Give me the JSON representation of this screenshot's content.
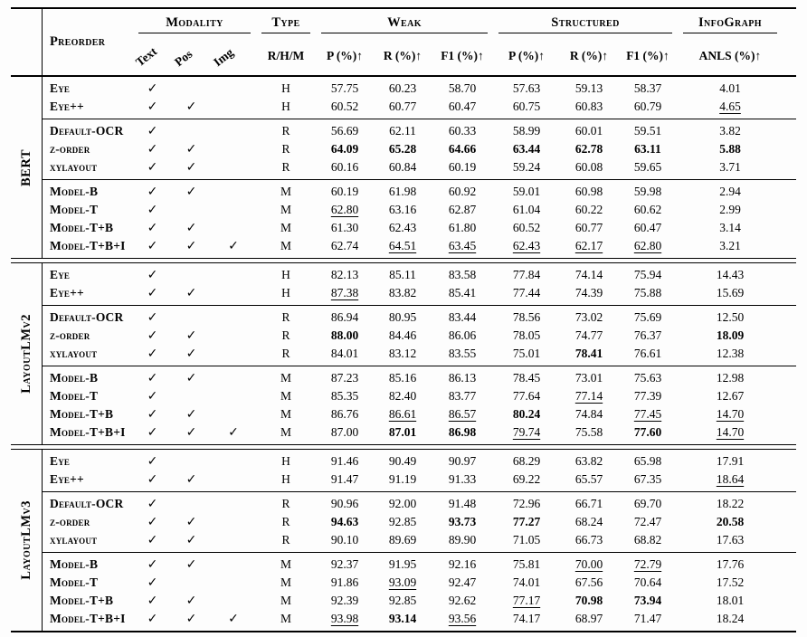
{
  "icons": {
    "check": "✓"
  },
  "colors": {
    "text": "#000000",
    "background": "#fdfdfd",
    "rule": "#000000"
  },
  "table": {
    "header": {
      "preorder": "Preorder",
      "modality": {
        "label": "Modality",
        "cols": [
          "Text",
          "Pos",
          "Img"
        ]
      },
      "type": {
        "label": "Type",
        "col": "R/H/M"
      },
      "weak": {
        "label": "Weak",
        "cols": [
          "P (%)↑",
          "R (%)↑",
          "F1 (%)↑"
        ]
      },
      "structured": {
        "label": "Structured",
        "cols": [
          "P (%)↑",
          "R (%)↑",
          "F1 (%)↑"
        ]
      },
      "infograph": {
        "label": "InfoGraph",
        "col": "ANLS (%)↑"
      }
    },
    "sections": [
      {
        "model": "BERT",
        "subsections": [
          {
            "rows": [
              {
                "label": "Eye",
                "checks": [
                  1,
                  0,
                  0
                ],
                "type": "H",
                "values": [
                  "57.75",
                  "60.23",
                  "58.70",
                  "57.63",
                  "59.13",
                  "58.37",
                  "4.01"
                ],
                "styles": [
                  "",
                  "",
                  "",
                  "",
                  "",
                  "",
                  ""
                ]
              },
              {
                "label": "Eye++",
                "checks": [
                  1,
                  1,
                  0
                ],
                "type": "H",
                "values": [
                  "60.52",
                  "60.77",
                  "60.47",
                  "60.75",
                  "60.83",
                  "60.79",
                  "4.65"
                ],
                "styles": [
                  "",
                  "",
                  "",
                  "",
                  "",
                  "",
                  "u"
                ]
              }
            ]
          },
          {
            "rows": [
              {
                "label": "Default-OCR",
                "checks": [
                  1,
                  0,
                  0
                ],
                "type": "R",
                "values": [
                  "56.69",
                  "62.11",
                  "60.33",
                  "58.99",
                  "60.01",
                  "59.51",
                  "3.82"
                ],
                "styles": [
                  "",
                  "",
                  "",
                  "",
                  "",
                  "",
                  ""
                ]
              },
              {
                "label": "z-order",
                "checks": [
                  1,
                  1,
                  0
                ],
                "type": "R",
                "values": [
                  "64.09",
                  "65.28",
                  "64.66",
                  "63.44",
                  "62.78",
                  "63.11",
                  "5.88"
                ],
                "styles": [
                  "b",
                  "b",
                  "b",
                  "b",
                  "b",
                  "b",
                  "b"
                ]
              },
              {
                "label": "xylayout",
                "checks": [
                  1,
                  1,
                  0
                ],
                "type": "R",
                "values": [
                  "60.16",
                  "60.84",
                  "60.19",
                  "59.24",
                  "60.08",
                  "59.65",
                  "3.71"
                ],
                "styles": [
                  "",
                  "",
                  "",
                  "",
                  "",
                  "",
                  ""
                ]
              }
            ]
          },
          {
            "rows": [
              {
                "label": "Model-B",
                "checks": [
                  1,
                  1,
                  0
                ],
                "type": "M",
                "values": [
                  "60.19",
                  "61.98",
                  "60.92",
                  "59.01",
                  "60.98",
                  "59.98",
                  "2.94"
                ],
                "styles": [
                  "",
                  "",
                  "",
                  "",
                  "",
                  "",
                  ""
                ]
              },
              {
                "label": "Model-T",
                "checks": [
                  1,
                  0,
                  0
                ],
                "type": "M",
                "values": [
                  "62.80",
                  "63.16",
                  "62.87",
                  "61.04",
                  "60.22",
                  "60.62",
                  "2.99"
                ],
                "styles": [
                  "u",
                  "",
                  "",
                  "",
                  "",
                  "",
                  ""
                ]
              },
              {
                "label": "Model-T+B",
                "checks": [
                  1,
                  1,
                  0
                ],
                "type": "M",
                "values": [
                  "61.30",
                  "62.43",
                  "61.80",
                  "60.52",
                  "60.77",
                  "60.47",
                  "3.14"
                ],
                "styles": [
                  "",
                  "",
                  "",
                  "",
                  "",
                  "",
                  ""
                ]
              },
              {
                "label": "Model-T+B+I",
                "checks": [
                  1,
                  1,
                  1
                ],
                "type": "M",
                "values": [
                  "62.74",
                  "64.51",
                  "63.45",
                  "62.43",
                  "62.17",
                  "62.80",
                  "3.21"
                ],
                "styles": [
                  "",
                  "u",
                  "u",
                  "u",
                  "u",
                  "u",
                  ""
                ]
              }
            ]
          }
        ]
      },
      {
        "model": "LayoutLMv2",
        "subsections": [
          {
            "rows": [
              {
                "label": "Eye",
                "checks": [
                  1,
                  0,
                  0
                ],
                "type": "H",
                "values": [
                  "82.13",
                  "85.11",
                  "83.58",
                  "77.84",
                  "74.14",
                  "75.94",
                  "14.43"
                ],
                "styles": [
                  "",
                  "",
                  "",
                  "",
                  "",
                  "",
                  ""
                ]
              },
              {
                "label": "Eye++",
                "checks": [
                  1,
                  1,
                  0
                ],
                "type": "H",
                "values": [
                  "87.38",
                  "83.82",
                  "85.41",
                  "77.44",
                  "74.39",
                  "75.88",
                  "15.69"
                ],
                "styles": [
                  "u",
                  "",
                  "",
                  "",
                  "",
                  "",
                  ""
                ]
              }
            ]
          },
          {
            "rows": [
              {
                "label": "Default-OCR",
                "checks": [
                  1,
                  0,
                  0
                ],
                "type": "R",
                "values": [
                  "86.94",
                  "80.95",
                  "83.44",
                  "78.56",
                  "73.02",
                  "75.69",
                  "12.50"
                ],
                "styles": [
                  "",
                  "",
                  "",
                  "",
                  "",
                  "",
                  ""
                ]
              },
              {
                "label": "z-order",
                "checks": [
                  1,
                  1,
                  0
                ],
                "type": "R",
                "values": [
                  "88.00",
                  "84.46",
                  "86.06",
                  "78.05",
                  "74.77",
                  "76.37",
                  "18.09"
                ],
                "styles": [
                  "b",
                  "",
                  "",
                  "",
                  "",
                  "",
                  "b"
                ]
              },
              {
                "label": "xylayout",
                "checks": [
                  1,
                  1,
                  0
                ],
                "type": "R",
                "values": [
                  "84.01",
                  "83.12",
                  "83.55",
                  "75.01",
                  "78.41",
                  "76.61",
                  "12.38"
                ],
                "styles": [
                  "",
                  "",
                  "",
                  "",
                  "b",
                  "",
                  ""
                ]
              }
            ]
          },
          {
            "rows": [
              {
                "label": "Model-B",
                "checks": [
                  1,
                  1,
                  0
                ],
                "type": "M",
                "values": [
                  "87.23",
                  "85.16",
                  "86.13",
                  "78.45",
                  "73.01",
                  "75.63",
                  "12.98"
                ],
                "styles": [
                  "",
                  "",
                  "",
                  "",
                  "",
                  "",
                  ""
                ]
              },
              {
                "label": "Model-T",
                "checks": [
                  1,
                  0,
                  0
                ],
                "type": "M",
                "values": [
                  "85.35",
                  "82.40",
                  "83.77",
                  "77.64",
                  "77.14",
                  "77.39",
                  "12.67"
                ],
                "styles": [
                  "",
                  "",
                  "",
                  "",
                  "u",
                  "",
                  ""
                ]
              },
              {
                "label": "Model-T+B",
                "checks": [
                  1,
                  1,
                  0
                ],
                "type": "M",
                "values": [
                  "86.76",
                  "86.61",
                  "86.57",
                  "80.24",
                  "74.84",
                  "77.45",
                  "14.70"
                ],
                "styles": [
                  "",
                  "u",
                  "u",
                  "b",
                  "",
                  "u",
                  "u"
                ]
              },
              {
                "label": "Model-T+B+I",
                "checks": [
                  1,
                  1,
                  1
                ],
                "type": "M",
                "values": [
                  "87.00",
                  "87.01",
                  "86.98",
                  "79.74",
                  "75.58",
                  "77.60",
                  "14.70"
                ],
                "styles": [
                  "",
                  "b",
                  "b",
                  "u",
                  "",
                  "b",
                  "u"
                ]
              }
            ]
          }
        ]
      },
      {
        "model": "LayoutLMv3",
        "subsections": [
          {
            "rows": [
              {
                "label": "Eye",
                "checks": [
                  1,
                  0,
                  0
                ],
                "type": "H",
                "values": [
                  "91.46",
                  "90.49",
                  "90.97",
                  "68.29",
                  "63.82",
                  "65.98",
                  "17.91"
                ],
                "styles": [
                  "",
                  "",
                  "",
                  "",
                  "",
                  "",
                  ""
                ]
              },
              {
                "label": "Eye++",
                "checks": [
                  1,
                  1,
                  0
                ],
                "type": "H",
                "values": [
                  "91.47",
                  "91.19",
                  "91.33",
                  "69.22",
                  "65.57",
                  "67.35",
                  "18.64"
                ],
                "styles": [
                  "",
                  "",
                  "",
                  "",
                  "",
                  "",
                  "u"
                ]
              }
            ]
          },
          {
            "rows": [
              {
                "label": "Default-OCR",
                "checks": [
                  1,
                  0,
                  0
                ],
                "type": "R",
                "values": [
                  "90.96",
                  "92.00",
                  "91.48",
                  "72.96",
                  "66.71",
                  "69.70",
                  "18.22"
                ],
                "styles": [
                  "",
                  "",
                  "",
                  "",
                  "",
                  "",
                  ""
                ]
              },
              {
                "label": "z-order",
                "checks": [
                  1,
                  1,
                  0
                ],
                "type": "R",
                "values": [
                  "94.63",
                  "92.85",
                  "93.73",
                  "77.27",
                  "68.24",
                  "72.47",
                  "20.58"
                ],
                "styles": [
                  "b",
                  "",
                  "b",
                  "b",
                  "",
                  "",
                  "b"
                ]
              },
              {
                "label": "xylayout",
                "checks": [
                  1,
                  1,
                  0
                ],
                "type": "R",
                "values": [
                  "90.10",
                  "89.69",
                  "89.90",
                  "71.05",
                  "66.73",
                  "68.82",
                  "17.63"
                ],
                "styles": [
                  "",
                  "",
                  "",
                  "",
                  "",
                  "",
                  ""
                ]
              }
            ]
          },
          {
            "rows": [
              {
                "label": "Model-B",
                "checks": [
                  1,
                  1,
                  0
                ],
                "type": "M",
                "values": [
                  "92.37",
                  "91.95",
                  "92.16",
                  "75.81",
                  "70.00",
                  "72.79",
                  "17.76"
                ],
                "styles": [
                  "",
                  "",
                  "",
                  "",
                  "u",
                  "u",
                  ""
                ]
              },
              {
                "label": "Model-T",
                "checks": [
                  1,
                  0,
                  0
                ],
                "type": "M",
                "values": [
                  "91.86",
                  "93.09",
                  "92.47",
                  "74.01",
                  "67.56",
                  "70.64",
                  "17.52"
                ],
                "styles": [
                  "",
                  "u",
                  "",
                  "",
                  "",
                  "",
                  ""
                ]
              },
              {
                "label": "Model-T+B",
                "checks": [
                  1,
                  1,
                  0
                ],
                "type": "M",
                "values": [
                  "92.39",
                  "92.85",
                  "92.62",
                  "77.17",
                  "70.98",
                  "73.94",
                  "18.01"
                ],
                "styles": [
                  "",
                  "",
                  "",
                  "u",
                  "b",
                  "b",
                  ""
                ]
              },
              {
                "label": "Model-T+B+I",
                "checks": [
                  1,
                  1,
                  1
                ],
                "type": "M",
                "values": [
                  "93.98",
                  "93.14",
                  "93.56",
                  "74.17",
                  "68.97",
                  "71.47",
                  "18.24"
                ],
                "styles": [
                  "u",
                  "b",
                  "u",
                  "",
                  "",
                  "",
                  ""
                ]
              }
            ]
          }
        ]
      }
    ]
  }
}
